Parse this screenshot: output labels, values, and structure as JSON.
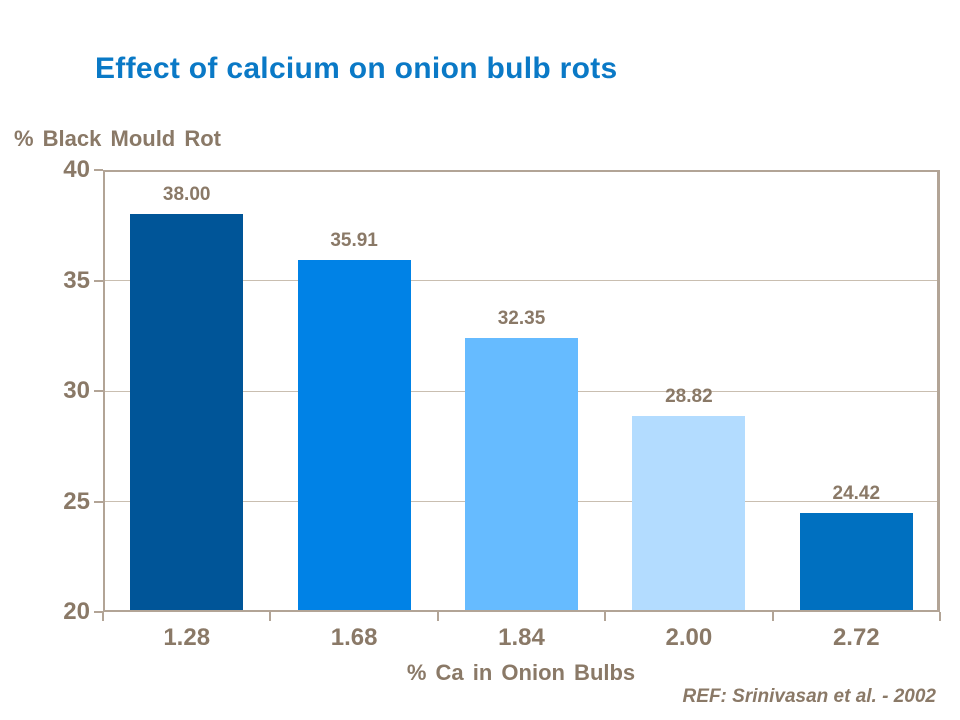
{
  "chart_data": {
    "type": "bar",
    "title": "Effect of calcium on onion bulb rots",
    "ylabel": "% Black Mould Rot",
    "xlabel": "% Ca in Onion Bulbs",
    "reference": "REF: Srinivasan et al. - 2002",
    "categories": [
      "1.28",
      "1.68",
      "1.84",
      "2.00",
      "2.72"
    ],
    "values": [
      38.0,
      35.91,
      32.35,
      28.82,
      24.42
    ],
    "value_labels": [
      "38.00",
      "35.91",
      "32.35",
      "28.82",
      "24.42"
    ],
    "bar_colors": [
      "#005598",
      "#0082E6",
      "#66BBFF",
      "#B3DCFF",
      "#0070C0"
    ],
    "ylim": [
      20,
      40
    ],
    "yticks": [
      20,
      25,
      30,
      35,
      40
    ],
    "grid": true,
    "legend_position": "none"
  },
  "colors": {
    "title_blue": "#0A79C6",
    "text_brown": "#8A7967",
    "axis_line": "#B2A496",
    "gridline": "#C9BEB0",
    "background": "#FFFFFF"
  }
}
